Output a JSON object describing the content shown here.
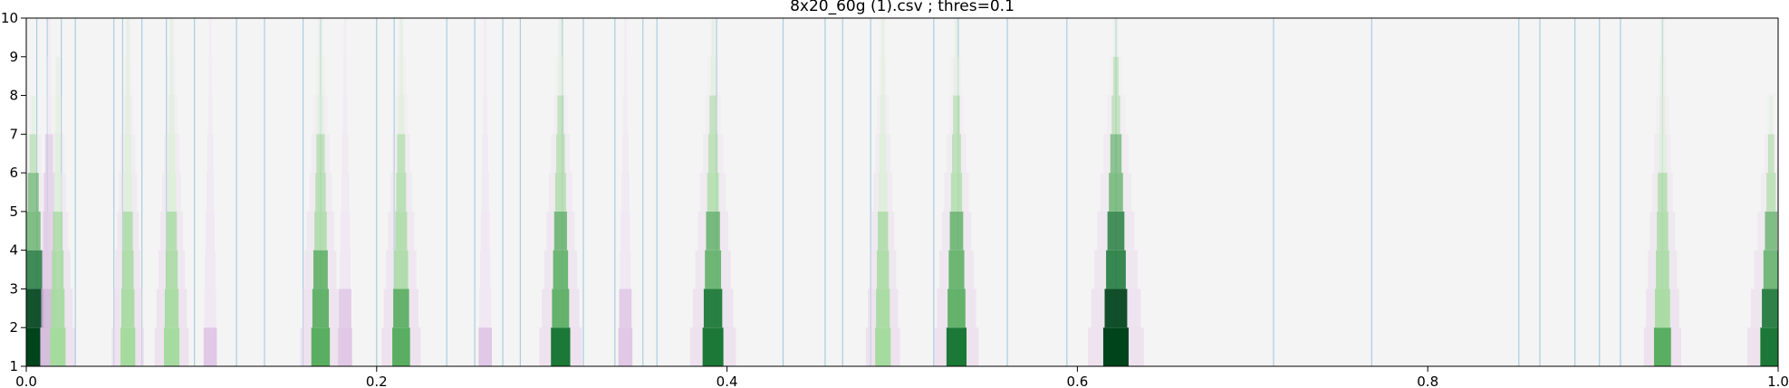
{
  "chart_data": {
    "type": "heatmap",
    "title": "8x20_60g (1).csv ; thres=0.1",
    "xlabel": "",
    "ylabel": "",
    "xlim": [
      0.0,
      1.0
    ],
    "ylim": [
      1,
      10
    ],
    "x_ticks": [
      "0.0",
      "0.2",
      "0.4",
      "0.6",
      "0.8",
      "1.0"
    ],
    "y_ticks": [
      "1",
      "2",
      "3",
      "4",
      "5",
      "6",
      "7",
      "8",
      "9",
      "10"
    ],
    "colormap": "PRGn",
    "background_color": "#f4f4f4",
    "threshold_line_color": "#9ec6dd",
    "grid": false,
    "peaks": [
      {
        "x": 0.004,
        "height": 8.0,
        "strength": 1.0,
        "sign": "positive"
      },
      {
        "x": 0.013,
        "height": 10.0,
        "strength": 0.5,
        "sign": "negative"
      },
      {
        "x": 0.018,
        "height": 9.0,
        "strength": 0.35,
        "sign": "positive"
      },
      {
        "x": 0.058,
        "height": 10.0,
        "strength": 0.3,
        "sign": "positive"
      },
      {
        "x": 0.083,
        "height": 10.0,
        "strength": 0.35,
        "sign": "positive"
      },
      {
        "x": 0.105,
        "height": 10.0,
        "strength": 0.2,
        "sign": "negative"
      },
      {
        "x": 0.168,
        "height": 10.0,
        "strength": 0.55,
        "sign": "positive"
      },
      {
        "x": 0.182,
        "height": 10.0,
        "strength": 0.25,
        "sign": "negative"
      },
      {
        "x": 0.214,
        "height": 10.0,
        "strength": 0.5,
        "sign": "positive"
      },
      {
        "x": 0.262,
        "height": 10.0,
        "strength": 0.2,
        "sign": "negative"
      },
      {
        "x": 0.305,
        "height": 10.0,
        "strength": 0.6,
        "sign": "positive"
      },
      {
        "x": 0.342,
        "height": 10.0,
        "strength": 0.25,
        "sign": "negative"
      },
      {
        "x": 0.392,
        "height": 10.0,
        "strength": 0.7,
        "sign": "positive"
      },
      {
        "x": 0.489,
        "height": 10.0,
        "strength": 0.35,
        "sign": "positive"
      },
      {
        "x": 0.531,
        "height": 10.0,
        "strength": 0.65,
        "sign": "positive"
      },
      {
        "x": 0.622,
        "height": 10.0,
        "strength": 1.0,
        "sign": "positive"
      },
      {
        "x": 0.934,
        "height": 10.0,
        "strength": 0.45,
        "sign": "positive"
      },
      {
        "x": 0.996,
        "height": 8.0,
        "strength": 0.75,
        "sign": "positive"
      }
    ],
    "threshold_lines_x": [
      0.006,
      0.012,
      0.02,
      0.028,
      0.05,
      0.055,
      0.066,
      0.08,
      0.096,
      0.12,
      0.136,
      0.158,
      0.168,
      0.2,
      0.21,
      0.24,
      0.256,
      0.272,
      0.282,
      0.306,
      0.318,
      0.336,
      0.352,
      0.36,
      0.394,
      0.432,
      0.456,
      0.466,
      0.482,
      0.518,
      0.532,
      0.56,
      0.594,
      0.622,
      0.712,
      0.768,
      0.852,
      0.864,
      0.884,
      0.898,
      0.91,
      0.934
    ]
  }
}
